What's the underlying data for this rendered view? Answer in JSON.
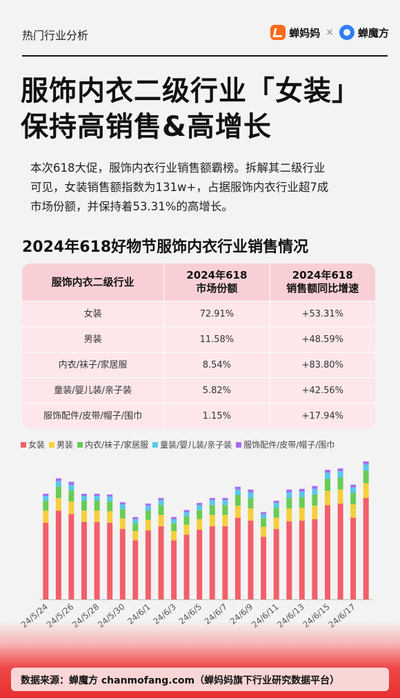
{
  "header": {
    "title": "热门行业分析",
    "brand1": "蝉妈妈",
    "separator": "×",
    "brand2": "蝉魔方"
  },
  "headline": {
    "line1": "服饰内衣二级行业「女装」",
    "line2": "保持高销售&高增长"
  },
  "intro": {
    "line1": "本次618大促，服饰内衣行业销售额霸榜。拆解其二级行业",
    "line2": "可见，女装销售额指数为131w+，占据服饰内衣行业超7成",
    "line3": "市场份额，并保持着53.31%的高增长。"
  },
  "section_title": "2024年618好物节服饰内衣行业销售情况",
  "table": {
    "headers": {
      "col1": "服饰内衣二级行业",
      "col2_l1": "2024年618",
      "col2_l2": "市场份额",
      "col3_l1": "2024年618",
      "col3_l2": "销售额同比增速"
    },
    "rows": [
      {
        "category": "女装",
        "share": "72.91%",
        "growth": "+53.31%"
      },
      {
        "category": "男装",
        "share": "11.58%",
        "growth": "+48.59%"
      },
      {
        "category": "内衣/袜子/家居服",
        "share": "8.54%",
        "growth": "+83.80%"
      },
      {
        "category": "童装/婴儿装/亲子装",
        "share": "5.82%",
        "growth": "+42.56%"
      },
      {
        "category": "服饰配件/皮带/帽子/围巾",
        "share": "1.15%",
        "growth": "+17.94%"
      }
    ]
  },
  "footer": {
    "text": "数据来源：蝉魔方 chanmofang.com（蝉妈妈旗下行业研究数据平台）"
  },
  "chart_data": {
    "type": "bar",
    "stacked": true,
    "legend_position": "top",
    "grid": false,
    "categories": [
      "24/5/24",
      "24/5/25",
      "24/5/26",
      "24/5/27",
      "24/5/28",
      "24/5/29",
      "24/5/30",
      "24/5/31",
      "24/6/1",
      "24/6/2",
      "24/6/3",
      "24/6/4",
      "24/6/5",
      "24/6/6",
      "24/6/7",
      "24/6/8",
      "24/6/9",
      "24/6/10",
      "24/6/11",
      "24/6/12",
      "24/6/13",
      "24/6/14",
      "24/6/15",
      "24/6/16",
      "24/6/17",
      "24/6/18"
    ],
    "tick_labels": [
      "24/5/24",
      "24/5/26",
      "24/5/28",
      "24/5/30",
      "24/6/1",
      "24/6/3",
      "24/6/5",
      "24/6/7",
      "24/6/9",
      "24/6/11",
      "24/6/13",
      "24/6/15",
      "24/6/17"
    ],
    "ylim": [
      0,
      195
    ],
    "series": [
      {
        "name": "女装",
        "color": "#f2606a",
        "values": [
          109,
          126,
          121,
          110,
          110,
          109,
          100,
          84,
          98,
          104,
          84,
          92,
          99,
          104,
          104,
          116,
          112,
          89,
          100,
          111,
          112,
          114,
          134,
          136,
          116,
          144
        ]
      },
      {
        "name": "男装",
        "color": "#f7cf3d",
        "values": [
          17,
          18,
          18,
          16,
          16,
          16,
          15,
          13,
          15,
          16,
          13,
          14,
          15,
          16,
          16,
          17,
          17,
          14,
          16,
          18,
          18,
          19,
          20,
          20,
          19,
          21
        ]
      },
      {
        "name": "内衣/袜子/家居服",
        "color": "#69cc55",
        "values": [
          14,
          16,
          16,
          14,
          14,
          14,
          13,
          11,
          13,
          14,
          11,
          12,
          13,
          14,
          14,
          15,
          15,
          12,
          14,
          15,
          15,
          16,
          17,
          17,
          16,
          18
        ]
      },
      {
        "name": "童装/婴儿装/亲子装",
        "color": "#5ac8ec",
        "values": [
          7,
          8,
          8,
          7,
          7,
          7,
          7,
          6,
          7,
          7,
          6,
          6,
          7,
          7,
          7,
          8,
          8,
          6,
          7,
          8,
          8,
          8,
          9,
          9,
          8,
          9
        ]
      },
      {
        "name": "服饰配件/皮带/帽子/围巾",
        "color": "#a66cf0",
        "values": [
          3,
          4,
          4,
          3,
          3,
          3,
          3,
          3,
          3,
          3,
          3,
          3,
          3,
          3,
          3,
          4,
          4,
          3,
          3,
          4,
          4,
          4,
          4,
          4,
          4,
          4
        ]
      }
    ]
  }
}
